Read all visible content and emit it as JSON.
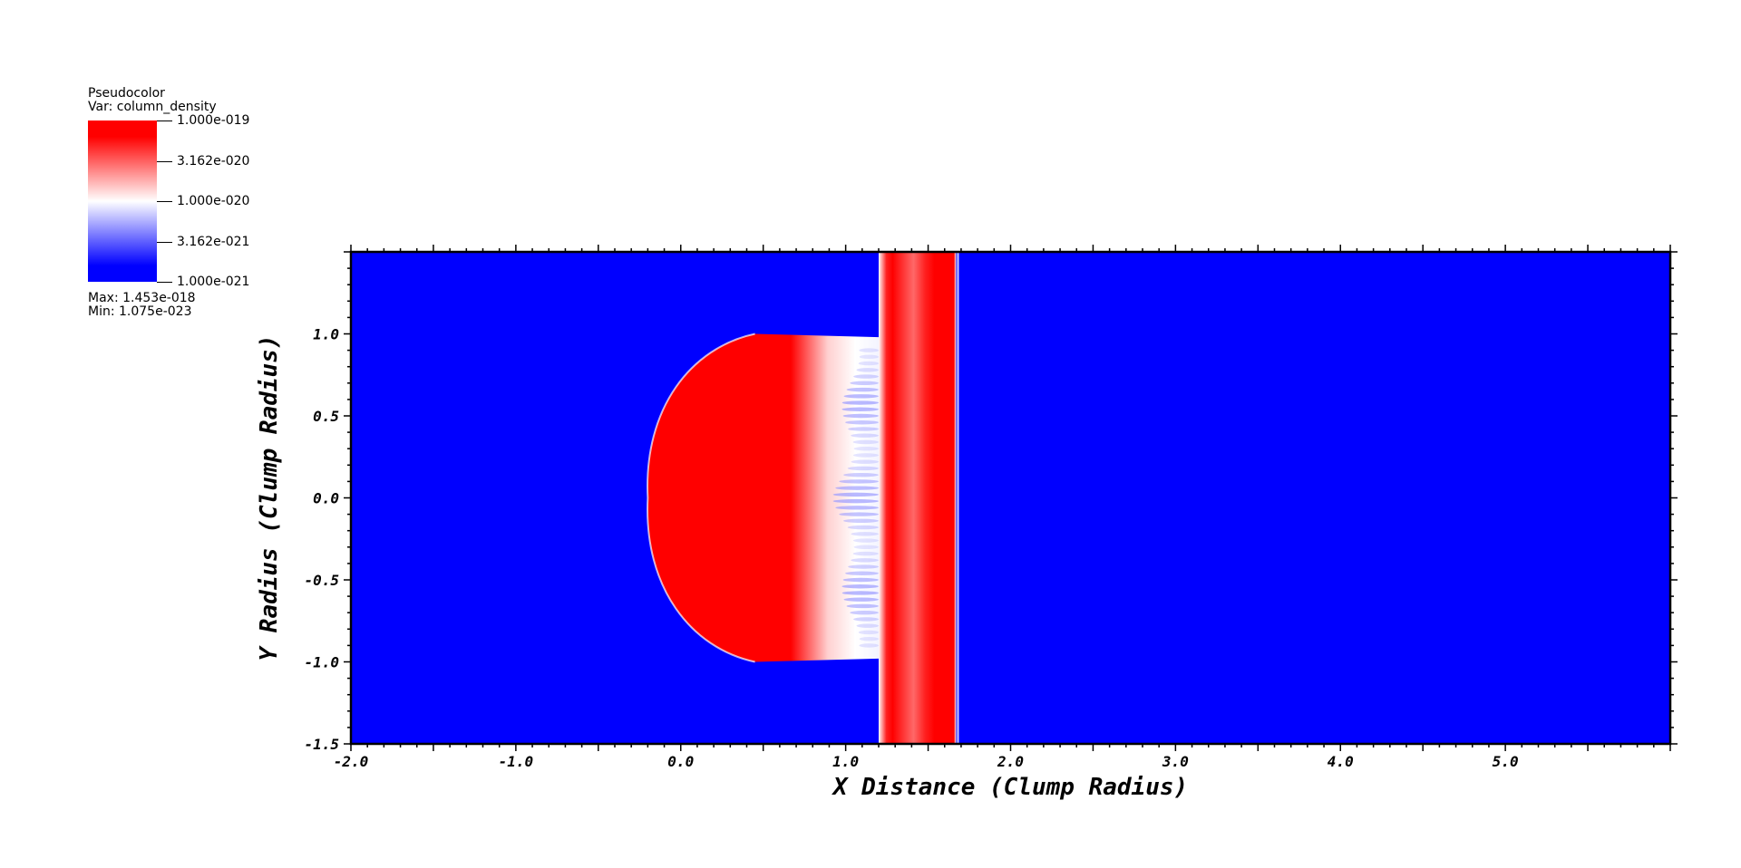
{
  "legend": {
    "plot_type": "Pseudocolor",
    "variable_label": "Var: column_density",
    "max_label": "Max:  1.453e-018",
    "min_label": "Min:  1.075e-023",
    "ticks": [
      "1.000e-019",
      "3.162e-020",
      "1.000e-020",
      "3.162e-021",
      "1.000e-021"
    ],
    "colors": {
      "high": "#ff0000",
      "mid": "#ffffff",
      "low": "#0000ff"
    }
  },
  "chart_data": {
    "type": "heatmap",
    "title": "",
    "xlabel": "X Distance (Clump Radius)",
    "ylabel": "Y Radius (Clump Radius)",
    "xlim": [
      -2.0,
      6.0
    ],
    "ylim": [
      -1.5,
      1.5
    ],
    "xticks": [
      -2.0,
      -1.0,
      0.0,
      1.0,
      2.0,
      3.0,
      4.0,
      5.0
    ],
    "xtick_labels": [
      "-2.0",
      "-1.0",
      "0.0",
      "1.0",
      "2.0",
      "3.0",
      "4.0",
      "5.0"
    ],
    "yticks": [
      -1.5,
      -1.0,
      -0.5,
      0.0,
      0.5,
      1.0
    ],
    "ytick_labels": [
      "-1.5",
      "-1.0",
      "-0.5",
      "0.0",
      "0.5",
      "1.0"
    ],
    "colormap": "blue-white-red, log scale",
    "color_range": [
      1e-21,
      1e-19
    ],
    "background_color": "#0000ff",
    "features": {
      "clump_cap": {
        "apex_x": -0.2,
        "top_x": 0.45,
        "top_y": 1.0,
        "back_x": 1.2,
        "back_y": 0.98
      },
      "slab": {
        "x_start": 1.2,
        "x_end": 1.67
      }
    },
    "grid": false,
    "legend": "top-left"
  }
}
